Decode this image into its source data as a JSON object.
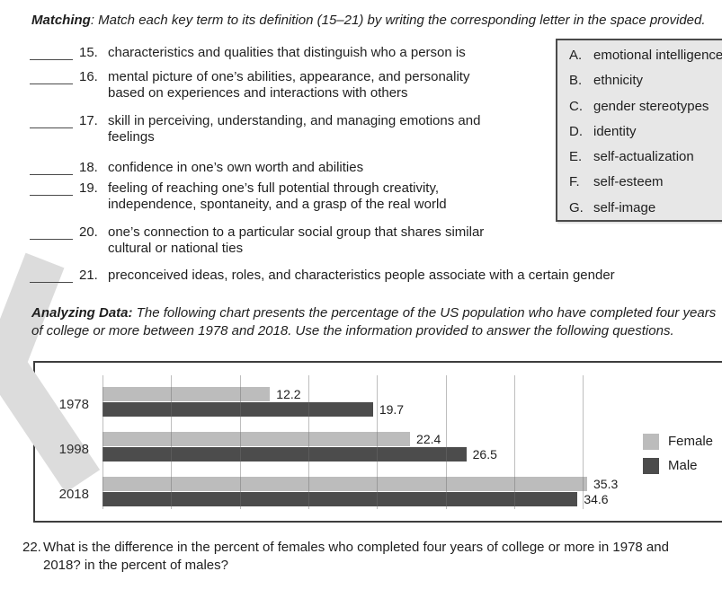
{
  "colors": {
    "female_bar": "#bcbcbc",
    "male_bar": "#4c4c4c",
    "answer_box_bg": "#e7e7e7",
    "watermark_gray": "#dcdcdc"
  },
  "matching": {
    "heading_label": "Matching",
    "heading_instructions": ": Match each key term to its definition (15–21) by writing the corresponding letter in the space provided.",
    "items": [
      {
        "number": "15.",
        "lines": [
          "characteristics and qualities that distinguish who a person is"
        ]
      },
      {
        "number": "16.",
        "lines": [
          "mental picture of one’s abilities, appearance, and personality",
          "based on experiences and interactions with others"
        ]
      },
      {
        "number": "17.",
        "lines": [
          "skill in perceiving, understanding, and managing emotions and",
          "feelings"
        ]
      },
      {
        "number": "18.",
        "lines": [
          "confidence in one’s own worth and abilities"
        ]
      },
      {
        "number": "19.",
        "lines": [
          "feeling of reaching one’s full potential through creativity,",
          "independence, spontaneity, and a grasp of the real world"
        ]
      },
      {
        "number": "20.",
        "lines": [
          "one’s connection to a particular social group that shares similar",
          "cultural or national ties"
        ]
      },
      {
        "number": "21.",
        "lines": [
          "preconceived ideas, roles, and characteristics people associate with a certain gender"
        ]
      }
    ],
    "options": [
      {
        "letter": "A.",
        "text": "emotional intelligence"
      },
      {
        "letter": "B.",
        "text": "ethnicity"
      },
      {
        "letter": "C.",
        "text": "gender stereotypes"
      },
      {
        "letter": "D.",
        "text": "identity"
      },
      {
        "letter": "E.",
        "text": "self-actualization"
      },
      {
        "letter": "F.",
        "text": "self-esteem"
      },
      {
        "letter": "G.",
        "text": "self-image"
      }
    ]
  },
  "analyzing": {
    "heading_label": "Analyzing Data:",
    "line1": " The following chart presents the percentage of the US population who have completed four years",
    "line2": "of college or more between 1978 and 2018. Use the information provided to answer the following questions."
  },
  "chart_data": {
    "type": "bar",
    "orientation": "horizontal",
    "title": "",
    "categories": [
      "1978",
      "1998",
      "2018"
    ],
    "series": [
      {
        "name": "Female",
        "color": "#bcbcbc",
        "values": [
          12.2,
          22.4,
          35.3
        ]
      },
      {
        "name": "Male",
        "color": "#4c4c4c",
        "values": [
          19.7,
          26.5,
          34.6
        ]
      }
    ],
    "value_labels": true,
    "unit": "percent",
    "xlim": [
      0,
      45
    ],
    "gridline_step": 5,
    "gridline_max": 35,
    "grid": true,
    "legend_position": "right"
  },
  "question22": {
    "number": "22.",
    "line1": "What is the difference in the percent of females who completed four years of college or more in 1978 and",
    "line2": "2018? in the percent of males?"
  }
}
